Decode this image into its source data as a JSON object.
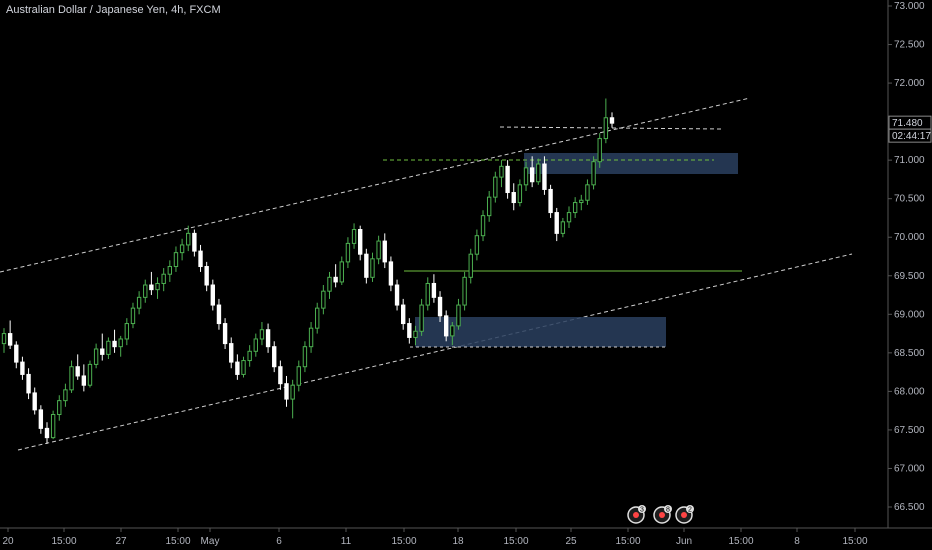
{
  "chart_data": {
    "type": "candlestick",
    "title": "Australian Dollar / Japanese Yen, 4h, FXCM",
    "y_ticks": [
      "73.000",
      "72.500",
      "72.000",
      "71.500",
      "71.000",
      "70.500",
      "70.000",
      "69.500",
      "69.000",
      "68.500",
      "68.000",
      "67.500",
      "67.000",
      "66.500"
    ],
    "ylim": [
      66.4,
      73.05
    ],
    "x_ticks": [
      "20",
      "15:00",
      "27",
      "15:00",
      "May",
      "6",
      "11",
      "15:00",
      "18",
      "15:00",
      "25",
      "15:00",
      "Jun",
      "15:00",
      "8",
      "15:00"
    ],
    "last_price": "71.480",
    "countdown": "02:44:17",
    "event_badges": [
      "3",
      "8",
      "2"
    ],
    "colors": {
      "up": "#4caf50",
      "down": "#ffffff",
      "background": "#000000",
      "zone": "#2a3f5f",
      "line": "#6fbf3f"
    },
    "candles": [
      [
        68.62,
        68.82,
        68.5,
        68.75
      ],
      [
        68.75,
        68.92,
        68.55,
        68.6
      ],
      [
        68.6,
        68.65,
        68.3,
        68.38
      ],
      [
        68.38,
        68.45,
        68.15,
        68.22
      ],
      [
        68.22,
        68.3,
        67.9,
        67.98
      ],
      [
        67.98,
        68.05,
        67.7,
        67.76
      ],
      [
        67.76,
        67.82,
        67.45,
        67.52
      ],
      [
        67.52,
        67.6,
        67.32,
        67.4
      ],
      [
        67.4,
        67.75,
        67.38,
        67.7
      ],
      [
        67.7,
        67.95,
        67.62,
        67.88
      ],
      [
        67.88,
        68.1,
        67.8,
        68.02
      ],
      [
        68.02,
        68.4,
        67.98,
        68.32
      ],
      [
        68.32,
        68.48,
        68.15,
        68.2
      ],
      [
        68.2,
        68.35,
        68.0,
        68.08
      ],
      [
        68.08,
        68.4,
        68.05,
        68.35
      ],
      [
        68.35,
        68.62,
        68.3,
        68.55
      ],
      [
        68.55,
        68.75,
        68.4,
        68.48
      ],
      [
        68.48,
        68.7,
        68.42,
        68.65
      ],
      [
        68.65,
        68.8,
        68.5,
        68.58
      ],
      [
        68.58,
        68.72,
        68.45,
        68.68
      ],
      [
        68.68,
        68.95,
        68.6,
        68.88
      ],
      [
        68.88,
        69.15,
        68.82,
        69.08
      ],
      [
        69.08,
        69.3,
        69.0,
        69.22
      ],
      [
        69.22,
        69.45,
        69.15,
        69.38
      ],
      [
        69.38,
        69.55,
        69.25,
        69.32
      ],
      [
        69.32,
        69.48,
        69.2,
        69.4
      ],
      [
        69.4,
        69.6,
        69.3,
        69.52
      ],
      [
        69.52,
        69.7,
        69.42,
        69.62
      ],
      [
        69.62,
        69.88,
        69.55,
        69.8
      ],
      [
        69.8,
        69.98,
        69.7,
        69.9
      ],
      [
        69.9,
        70.15,
        69.82,
        70.05
      ],
      [
        70.05,
        70.1,
        69.75,
        69.82
      ],
      [
        69.82,
        69.9,
        69.55,
        69.62
      ],
      [
        69.62,
        69.68,
        69.3,
        69.38
      ],
      [
        69.38,
        69.45,
        69.05,
        69.12
      ],
      [
        69.12,
        69.2,
        68.8,
        68.88
      ],
      [
        68.88,
        68.95,
        68.55,
        68.62
      ],
      [
        68.62,
        68.7,
        68.3,
        68.38
      ],
      [
        68.38,
        68.48,
        68.15,
        68.22
      ],
      [
        68.22,
        68.45,
        68.18,
        68.4
      ],
      [
        68.4,
        68.6,
        68.32,
        68.52
      ],
      [
        68.52,
        68.75,
        68.45,
        68.68
      ],
      [
        68.68,
        68.9,
        68.6,
        68.8
      ],
      [
        68.8,
        68.88,
        68.5,
        68.58
      ],
      [
        68.58,
        68.65,
        68.25,
        68.32
      ],
      [
        68.32,
        68.4,
        68.02,
        68.1
      ],
      [
        68.1,
        68.2,
        67.8,
        67.9
      ],
      [
        67.9,
        68.15,
        67.65,
        68.08
      ],
      [
        68.08,
        68.4,
        68.0,
        68.32
      ],
      [
        68.32,
        68.65,
        68.25,
        68.58
      ],
      [
        68.58,
        68.9,
        68.5,
        68.82
      ],
      [
        68.82,
        69.15,
        68.75,
        69.08
      ],
      [
        69.08,
        69.38,
        69.0,
        69.3
      ],
      [
        69.3,
        69.55,
        69.2,
        69.48
      ],
      [
        69.48,
        69.65,
        69.35,
        69.42
      ],
      [
        69.42,
        69.75,
        69.38,
        69.68
      ],
      [
        69.68,
        70.0,
        69.6,
        69.92
      ],
      [
        69.92,
        70.18,
        69.85,
        70.1
      ],
      [
        70.1,
        70.15,
        69.7,
        69.78
      ],
      [
        69.78,
        69.85,
        69.4,
        69.48
      ],
      [
        69.48,
        69.8,
        69.42,
        69.72
      ],
      [
        69.72,
        70.02,
        69.65,
        69.95
      ],
      [
        69.95,
        70.05,
        69.6,
        69.68
      ],
      [
        69.68,
        69.75,
        69.3,
        69.38
      ],
      [
        69.38,
        69.45,
        69.05,
        69.12
      ],
      [
        69.12,
        69.2,
        68.8,
        68.88
      ],
      [
        68.88,
        68.95,
        68.62,
        68.7
      ],
      [
        68.7,
        68.85,
        68.6,
        68.78
      ],
      [
        68.78,
        69.2,
        68.72,
        69.12
      ],
      [
        69.12,
        69.48,
        69.05,
        69.4
      ],
      [
        69.4,
        69.52,
        69.15,
        69.22
      ],
      [
        69.22,
        69.3,
        68.9,
        68.98
      ],
      [
        68.98,
        69.05,
        68.65,
        68.72
      ],
      [
        68.72,
        68.9,
        68.6,
        68.85
      ],
      [
        68.85,
        69.2,
        68.8,
        69.12
      ],
      [
        69.12,
        69.55,
        69.05,
        69.48
      ],
      [
        69.48,
        69.85,
        69.4,
        69.78
      ],
      [
        69.78,
        70.1,
        69.7,
        70.02
      ],
      [
        70.02,
        70.35,
        69.95,
        70.28
      ],
      [
        70.28,
        70.6,
        70.2,
        70.52
      ],
      [
        70.52,
        70.85,
        70.45,
        70.78
      ],
      [
        70.78,
        71.0,
        70.65,
        70.92
      ],
      [
        70.92,
        71.0,
        70.5,
        70.58
      ],
      [
        70.58,
        70.7,
        70.35,
        70.45
      ],
      [
        70.45,
        70.75,
        70.4,
        70.68
      ],
      [
        70.68,
        70.98,
        70.6,
        70.9
      ],
      [
        70.9,
        71.05,
        70.65,
        70.72
      ],
      [
        70.72,
        71.02,
        70.68,
        70.95
      ],
      [
        70.95,
        71.05,
        70.55,
        70.62
      ],
      [
        70.62,
        70.68,
        70.25,
        70.32
      ],
      [
        70.32,
        70.38,
        69.95,
        70.05
      ],
      [
        70.05,
        70.25,
        70.0,
        70.2
      ],
      [
        70.2,
        70.4,
        70.12,
        70.32
      ],
      [
        70.32,
        70.52,
        70.25,
        70.45
      ],
      [
        70.45,
        70.55,
        70.35,
        70.48
      ],
      [
        70.48,
        70.75,
        70.42,
        70.68
      ],
      [
        70.68,
        71.05,
        70.62,
        70.98
      ],
      [
        70.98,
        71.35,
        70.9,
        71.28
      ],
      [
        71.28,
        71.8,
        71.22,
        71.55
      ],
      [
        71.55,
        71.62,
        71.42,
        71.48
      ]
    ]
  }
}
